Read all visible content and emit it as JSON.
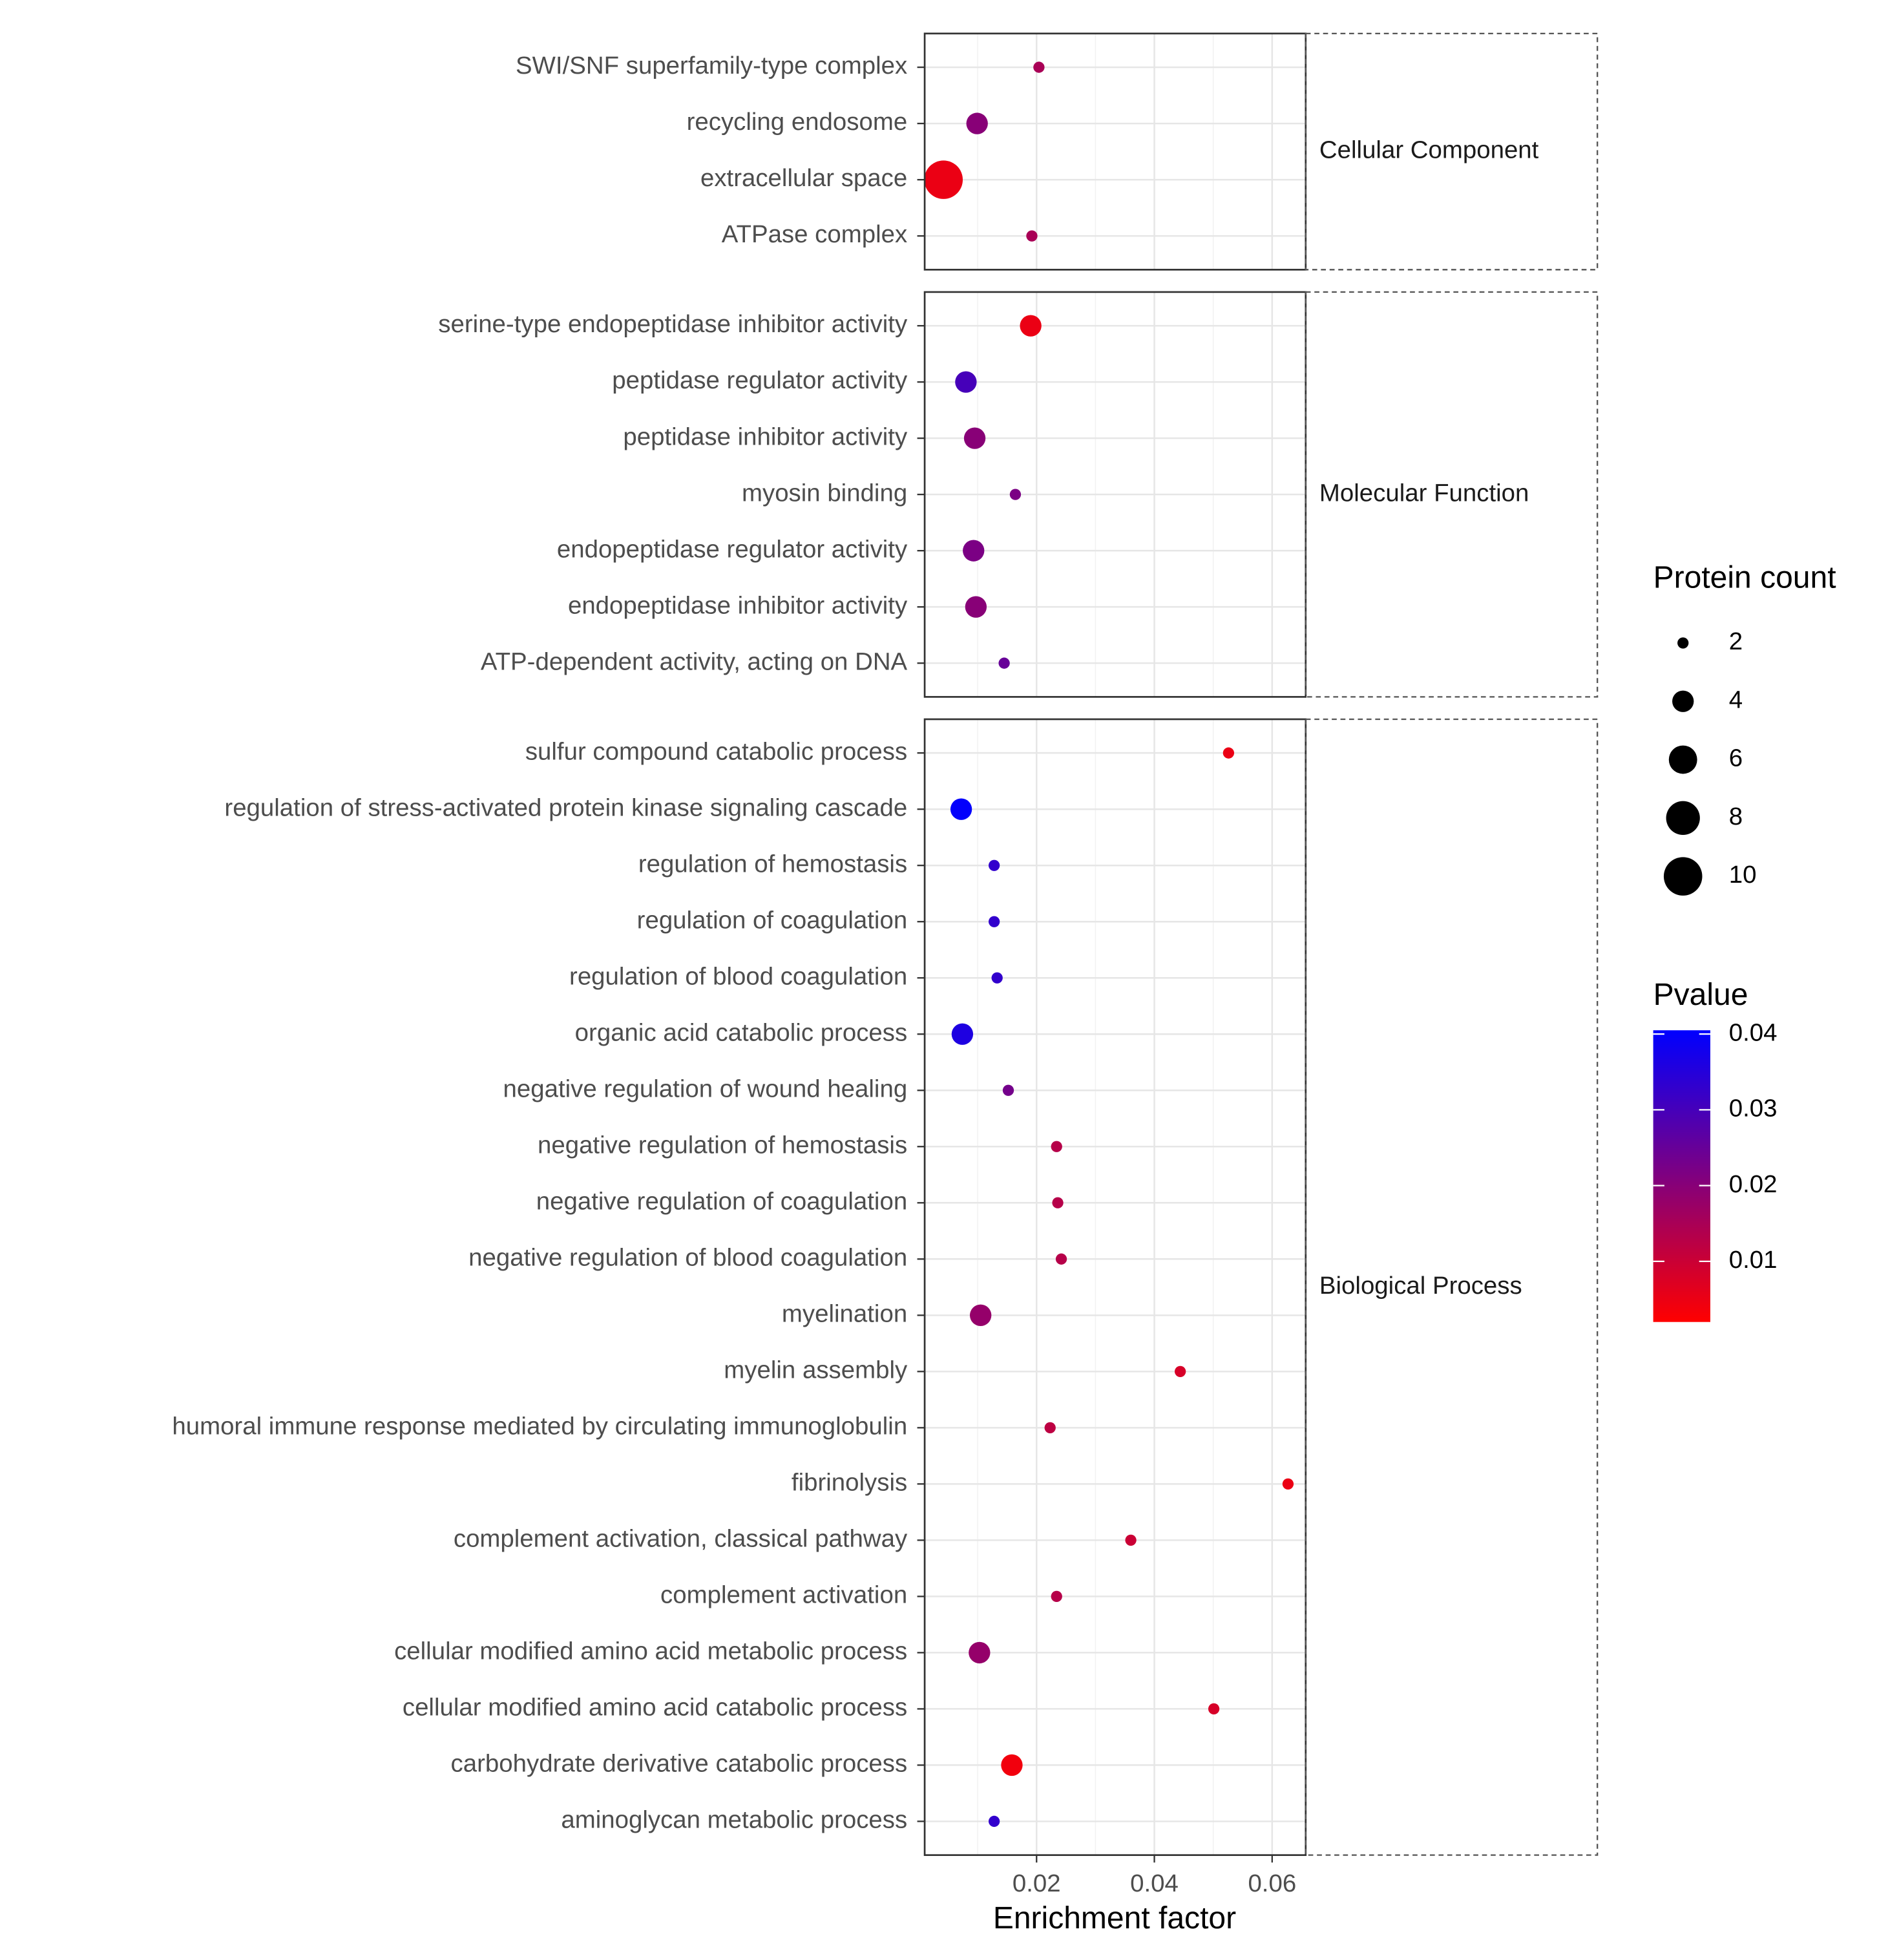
{
  "chart_data": {
    "type": "scatter",
    "x_label": "Enrichment factor",
    "xlim": [
      0.001,
      0.0657
    ],
    "xticks": [
      0.02,
      0.04,
      0.06
    ],
    "grid": true,
    "size_legend": {
      "title": "Protein count",
      "breaks": [
        2,
        4,
        6,
        8,
        10
      ]
    },
    "color_legend": {
      "title": "Pvalue",
      "ticks": [
        0.01,
        0.02,
        0.03,
        0.04
      ],
      "clim": [
        0.002,
        0.0405
      ],
      "colors": [
        "#ff0000",
        "#0000ff"
      ]
    },
    "panels": [
      {
        "name": "Cellular Component",
        "categories": [
          "SWI/SNF superfamily-type complex",
          "recycling endosome",
          "extracellular space",
          "ATPase complex"
        ],
        "values": [
          0.0204,
          0.0099,
          0.0042,
          0.0192
        ],
        "sizes": [
          2,
          4,
          10,
          2
        ],
        "pvalues": [
          0.015,
          0.02,
          0.005,
          0.015
        ]
      },
      {
        "name": "Molecular Function",
        "categories": [
          "serine-type endopeptidase inhibitor activity",
          "peptidase regulator activity",
          "peptidase inhibitor activity",
          "myosin binding",
          "endopeptidase regulator activity",
          "endopeptidase inhibitor activity",
          "ATP-dependent activity, acting on DNA"
        ],
        "values": [
          0.019,
          0.008,
          0.0095,
          0.0164,
          0.0093,
          0.0097,
          0.0145
        ],
        "sizes": [
          4,
          4,
          4,
          2,
          4,
          4,
          2
        ],
        "pvalues": [
          0.005,
          0.03,
          0.02,
          0.022,
          0.022,
          0.02,
          0.025
        ]
      },
      {
        "name": "Biological Process",
        "categories": [
          "sulfur compound catabolic process",
          "regulation of stress-activated protein kinase signaling cascade",
          "regulation of hemostasis",
          "regulation of coagulation",
          "regulation of blood coagulation",
          "organic acid catabolic process",
          "negative regulation of wound healing",
          "negative regulation of hemostasis",
          "negative regulation of coagulation",
          "negative regulation of blood coagulation",
          "myelination",
          "myelin assembly",
          "humoral immune response mediated by circulating immunoglobulin",
          "fibrinolysis",
          "complement activation, classical pathway",
          "complement activation",
          "cellular modified amino acid metabolic process",
          "cellular modified amino acid catabolic process",
          "carbohydrate derivative catabolic process",
          "aminoglycan metabolic process"
        ],
        "values": [
          0.0526,
          0.0072,
          0.0128,
          0.0128,
          0.0133,
          0.0074,
          0.0152,
          0.0234,
          0.0236,
          0.0242,
          0.0105,
          0.0444,
          0.0223,
          0.0627,
          0.036,
          0.0234,
          0.0103,
          0.0501,
          0.0158,
          0.0128
        ],
        "sizes": [
          2,
          4,
          2,
          2,
          2,
          4,
          2,
          2,
          2,
          2,
          4,
          2,
          2,
          2,
          2,
          2,
          4,
          2,
          4,
          2
        ],
        "pvalues": [
          0.005,
          0.04,
          0.033,
          0.033,
          0.033,
          0.036,
          0.023,
          0.013,
          0.013,
          0.013,
          0.018,
          0.008,
          0.012,
          0.005,
          0.01,
          0.013,
          0.018,
          0.008,
          0.004,
          0.033
        ]
      }
    ]
  }
}
